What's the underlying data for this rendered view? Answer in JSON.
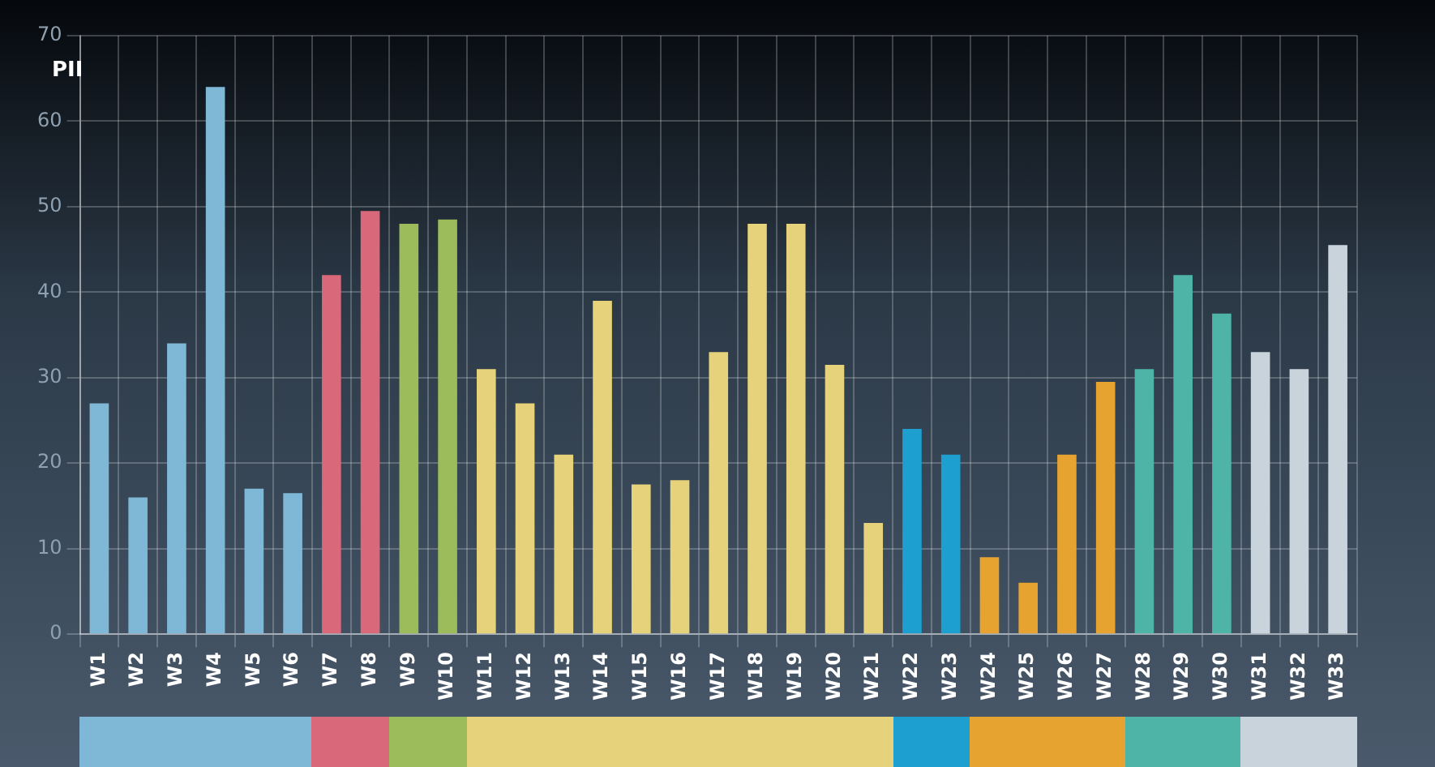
{
  "chart_data": {
    "type": "bar",
    "ylabel": "PII",
    "categories": [
      "W1",
      "W2",
      "W3",
      "W4",
      "W5",
      "W6",
      "W7",
      "W8",
      "W9",
      "W10",
      "W11",
      "W12",
      "W13",
      "W14",
      "W15",
      "W16",
      "W17",
      "W18",
      "W19",
      "W20",
      "W21",
      "W22",
      "W23",
      "W24",
      "W25",
      "W26",
      "W27",
      "W28",
      "W29",
      "W30",
      "W31",
      "W32",
      "W33"
    ],
    "values": [
      27,
      16,
      34,
      64,
      17,
      16.5,
      42,
      49.5,
      48,
      48.5,
      31,
      27,
      21,
      39,
      17.5,
      18,
      33,
      48,
      48,
      31.5,
      13,
      24,
      21,
      9,
      6,
      21,
      29.5,
      31,
      42,
      37.5,
      33,
      31,
      45.5
    ],
    "colors": [
      "#7fb8d6",
      "#7fb8d6",
      "#7fb8d6",
      "#7fb8d6",
      "#7fb8d6",
      "#7fb8d6",
      "#d9687a",
      "#d9687a",
      "#9cbb5a",
      "#9cbb5a",
      "#e6d27a",
      "#e6d27a",
      "#e6d27a",
      "#e6d27a",
      "#e6d27a",
      "#e6d27a",
      "#e6d27a",
      "#e6d27a",
      "#e6d27a",
      "#e6d27a",
      "#e6d27a",
      "#1d9fd0",
      "#1d9fd0",
      "#e6a330",
      "#e6a330",
      "#e6a330",
      "#e6a330",
      "#4fb4a8",
      "#4fb4a8",
      "#4fb4a8",
      "#c9d3dc",
      "#c9d3dc",
      "#c9d3dc"
    ],
    "ylim": [
      0,
      70
    ],
    "yticks": [
      0,
      10,
      20,
      30,
      40,
      50,
      60,
      70
    ],
    "grid": true,
    "legend": false
  }
}
